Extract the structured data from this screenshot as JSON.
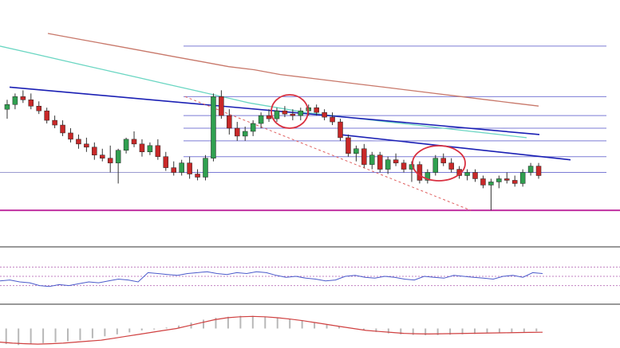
{
  "chart_data": {
    "type": "candlestick",
    "title": "",
    "xlabel": "",
    "ylabel": "",
    "grid": false,
    "legend": "none",
    "price_ylim": [
      0,
      100
    ],
    "candles": [
      [
        52,
        58,
        46,
        55
      ],
      [
        55,
        62,
        52,
        60
      ],
      [
        60,
        64,
        56,
        58
      ],
      [
        58,
        62,
        52,
        54
      ],
      [
        54,
        57,
        49,
        51
      ],
      [
        51,
        53,
        43,
        45
      ],
      [
        45,
        48,
        40,
        42
      ],
      [
        42,
        45,
        35,
        37
      ],
      [
        37,
        40,
        31,
        33
      ],
      [
        33,
        36,
        27,
        30
      ],
      [
        30,
        34,
        25,
        28
      ],
      [
        28,
        31,
        20,
        23
      ],
      [
        23,
        27,
        19,
        21
      ],
      [
        21,
        29,
        12,
        18
      ],
      [
        18,
        27,
        5,
        26
      ],
      [
        26,
        34,
        24,
        33
      ],
      [
        33,
        38,
        28,
        30
      ],
      [
        30,
        33,
        22,
        25
      ],
      [
        25,
        31,
        23,
        29
      ],
      [
        29,
        33,
        20,
        22
      ],
      [
        22,
        25,
        13,
        15
      ],
      [
        15,
        19,
        10,
        12
      ],
      [
        12,
        20,
        10,
        18
      ],
      [
        18,
        22,
        8,
        11
      ],
      [
        11,
        14,
        7,
        9
      ],
      [
        9,
        23,
        7,
        21
      ],
      [
        21,
        62,
        19,
        60
      ],
      [
        60,
        64,
        46,
        48
      ],
      [
        48,
        52,
        36,
        40
      ],
      [
        40,
        44,
        32,
        35
      ],
      [
        35,
        41,
        32,
        38
      ],
      [
        38,
        45,
        35,
        43
      ],
      [
        43,
        50,
        40,
        48
      ],
      [
        48,
        52,
        44,
        46
      ],
      [
        46,
        53,
        44,
        51
      ],
      [
        51,
        54,
        47,
        49
      ],
      [
        49,
        52,
        45,
        48
      ],
      [
        48,
        53,
        45,
        51
      ],
      [
        51,
        55,
        48,
        53
      ],
      [
        53,
        55,
        48,
        50
      ],
      [
        50,
        52,
        45,
        47
      ],
      [
        47,
        50,
        42,
        44
      ],
      [
        44,
        46,
        32,
        34
      ],
      [
        34,
        36,
        22,
        24
      ],
      [
        24,
        29,
        19,
        27
      ],
      [
        27,
        30,
        15,
        17
      ],
      [
        17,
        25,
        14,
        23
      ],
      [
        23,
        25,
        12,
        14
      ],
      [
        14,
        22,
        11,
        20
      ],
      [
        20,
        24,
        16,
        18
      ],
      [
        18,
        20,
        12,
        14
      ],
      [
        14,
        19,
        6,
        17
      ],
      [
        17,
        19,
        5,
        7
      ],
      [
        7,
        14,
        5,
        12
      ],
      [
        12,
        23,
        10,
        21
      ],
      [
        21,
        24,
        16,
        18
      ],
      [
        18,
        21,
        12,
        14
      ],
      [
        14,
        16,
        8,
        10
      ],
      [
        10,
        14,
        7,
        12
      ],
      [
        12,
        14,
        6,
        8
      ],
      [
        8,
        10,
        2,
        4
      ],
      [
        4,
        8,
        -12,
        6
      ],
      [
        6,
        10,
        2,
        8
      ],
      [
        8,
        12,
        5,
        7
      ],
      [
        7,
        10,
        3,
        5
      ],
      [
        5,
        14,
        3,
        12
      ],
      [
        12,
        18,
        10,
        16
      ],
      [
        16,
        18,
        8,
        10
      ]
    ],
    "trendlines": [
      {
        "kind": "resistance",
        "color": "#1a1fb4"
      },
      {
        "kind": "resistance",
        "color": "#1a1fb4"
      },
      {
        "kind": "channel",
        "color": "#e06060",
        "dashed": true
      }
    ],
    "moving_averages": [
      {
        "color": "#c8786a",
        "values": [
          100,
          97,
          94,
          91,
          88,
          85,
          82,
          79,
          77,
          74,
          72,
          70,
          68,
          66,
          64,
          62,
          60,
          58,
          56,
          54
        ]
      },
      {
        "color": "#6ad6c2",
        "values": [
          92,
          88,
          84,
          80,
          76,
          72,
          68,
          64,
          60,
          56,
          53,
          50,
          48,
          46,
          44,
          42,
          40,
          38,
          36,
          34
        ]
      }
    ],
    "fib_levels": [
      92,
      60,
      48,
      40,
      32,
      22,
      12
    ],
    "support_level": -12,
    "highlights": [
      {
        "color": "#d93040",
        "candle": "20-24"
      },
      {
        "color": "#d93040",
        "candle": "45-50"
      }
    ],
    "rsi": {
      "color": "#4a5acb",
      "ylim": [
        0,
        100
      ],
      "values": [
        40,
        42,
        38,
        36,
        30,
        28,
        32,
        30,
        34,
        38,
        36,
        40,
        44,
        42,
        38,
        58,
        56,
        54,
        52,
        56,
        58,
        60,
        56,
        54,
        58,
        56,
        60,
        58,
        52,
        48,
        50,
        46,
        44,
        40,
        42,
        50,
        52,
        48,
        46,
        50,
        48,
        44,
        42,
        50,
        48,
        46,
        52,
        50,
        48,
        46,
        44,
        50,
        52,
        48,
        58,
        56
      ],
      "levels": [
        70,
        50,
        30
      ]
    },
    "macd": {
      "histogram_color": "#b8b8b8",
      "signal_color": "#d04040",
      "ylim": [
        -10,
        10
      ],
      "histogram": [
        -8,
        -8.5,
        -8,
        -7.5,
        -7,
        -6.5,
        -6,
        -5,
        -4,
        -3,
        -2,
        -1,
        -0.5,
        0.5,
        1.5,
        3,
        4.5,
        5.5,
        6,
        6.5,
        6.5,
        6,
        5.5,
        5,
        4,
        3,
        2,
        1,
        0,
        -1,
        -1.8,
        -2.5,
        -3,
        -3.3,
        -3.5,
        -3.4,
        -3.2,
        -3,
        -2.8,
        -2.5,
        -2.2,
        -2,
        -1.8,
        -1.5
      ],
      "signal": [
        -7,
        -7.5,
        -7.8,
        -8,
        -7.8,
        -7.5,
        -7,
        -6.5,
        -6,
        -5,
        -4,
        -3,
        -2,
        -1,
        0,
        1.5,
        3,
        4.5,
        5.5,
        6,
        6.2,
        6,
        5.5,
        4.8,
        4,
        3,
        2,
        1,
        0,
        -1,
        -1.5,
        -2,
        -2.5,
        -2.7,
        -2.8,
        -2.7,
        -2.6,
        -2.5,
        -2.4,
        -2.3,
        -2.2,
        -2.1,
        -2,
        -1.9
      ]
    },
    "colors": {
      "bull": "#30a050",
      "bear": "#c82828",
      "support": "#c030a0",
      "fib": "#5050c8",
      "divider": "#333333"
    }
  }
}
